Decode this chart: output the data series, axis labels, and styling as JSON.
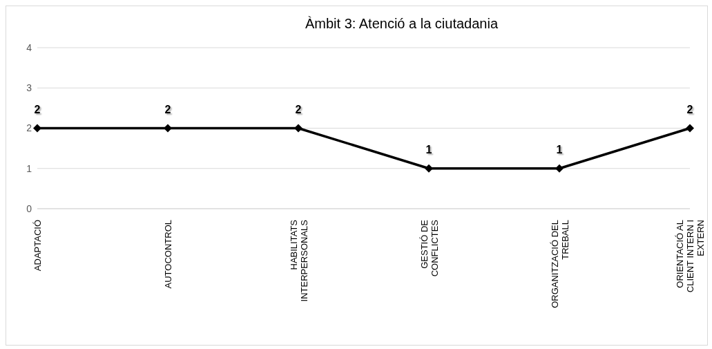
{
  "chart_data": {
    "type": "line",
    "title": "Àmbit 3:  Atenció a la ciutadania",
    "categories": [
      "ADAPTACIÓ",
      "AUTOCONTROL",
      "HABILITATS INTERPERSONALS",
      "GESTIÓ DE CONFLICTES",
      "ORGANITZACIÓ DEL TREBALL",
      "ORIENTACIÓ AL CLIENT INTERN I EXTERN"
    ],
    "series": [
      {
        "color": "#000000",
        "values": [
          2,
          2,
          2,
          1,
          1,
          2
        ]
      }
    ],
    "ylim": [
      0,
      4
    ],
    "yticks": [
      0,
      1,
      2,
      3,
      4
    ],
    "grid": "y",
    "legend": false,
    "marker": "diamond",
    "line_style": "solid",
    "data_labels": true
  }
}
